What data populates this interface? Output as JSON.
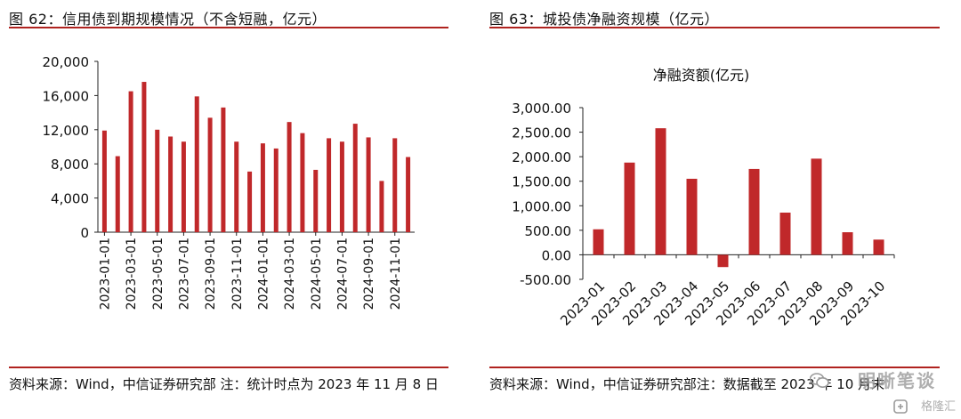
{
  "left": {
    "title": "图 62：信用债到期规模情况（不含短融，亿元）",
    "source": "资料来源：Wind，中信证券研究部 注：统计时点为 2023 年 11 月 8 日"
  },
  "right": {
    "title": "图 63：城投债净融资规模（亿元）",
    "source": "资料来源：Wind，中信证券研究部注：数据截至 2023 年 10 月末"
  },
  "watermark": {
    "text": "明晰笔谈",
    "sub": "格隆汇"
  },
  "colors": {
    "accent": "#b0231f",
    "bar": "#c0282a"
  },
  "chart_data": [
    {
      "type": "bar",
      "title": "",
      "xlabel": "",
      "ylabel": "",
      "ylim": [
        0,
        20000
      ],
      "yticks": [
        0,
        4000,
        8000,
        12000,
        16000,
        20000
      ],
      "ytick_labels": [
        "0",
        "4,000",
        "8,000",
        "12,000",
        "16,000",
        "20,000"
      ],
      "categories": [
        "2023-01-01",
        "2023-02-01",
        "2023-03-01",
        "2023-04-01",
        "2023-05-01",
        "2023-06-01",
        "2023-07-01",
        "2023-08-01",
        "2023-09-01",
        "2023-10-01",
        "2023-11-01",
        "2023-12-01",
        "2024-01-01",
        "2024-02-01",
        "2024-03-01",
        "2024-04-01",
        "2024-05-01",
        "2024-06-01",
        "2024-07-01",
        "2024-08-01",
        "2024-09-01",
        "2024-10-01",
        "2024-11-01",
        "2024-12-01"
      ],
      "xtick_labels": [
        "2023-01-01",
        "2023-03-01",
        "2023-05-01",
        "2023-07-01",
        "2023-09-01",
        "2023-11-01",
        "2024-01-01",
        "2024-03-01",
        "2024-05-01",
        "2024-07-01",
        "2024-09-01",
        "2024-11-01"
      ],
      "values": [
        11900,
        8900,
        16500,
        17600,
        12000,
        11200,
        10600,
        15900,
        13400,
        14600,
        10600,
        7100,
        10400,
        9800,
        12900,
        11600,
        7300,
        11000,
        10600,
        12700,
        11100,
        6000,
        11000,
        8800
      ],
      "grid": false,
      "legend": "none"
    },
    {
      "type": "bar",
      "title": "净融资额(亿元)",
      "xlabel": "",
      "ylabel": "",
      "ylim": [
        -500,
        3000
      ],
      "yticks": [
        -500,
        0,
        500,
        1000,
        1500,
        2000,
        2500,
        3000
      ],
      "ytick_labels": [
        "-500.00",
        "0.00",
        "500.00",
        "1,000.00",
        "1,500.00",
        "2,000.00",
        "2,500.00",
        "3,000.00"
      ],
      "categories": [
        "2023-01",
        "2023-02",
        "2023-03",
        "2023-04",
        "2023-05",
        "2023-06",
        "2023-07",
        "2023-08",
        "2023-09",
        "2023-10"
      ],
      "values": [
        520,
        1880,
        2580,
        1550,
        -250,
        1750,
        860,
        1960,
        460,
        310
      ],
      "grid": false,
      "legend": "none"
    }
  ]
}
